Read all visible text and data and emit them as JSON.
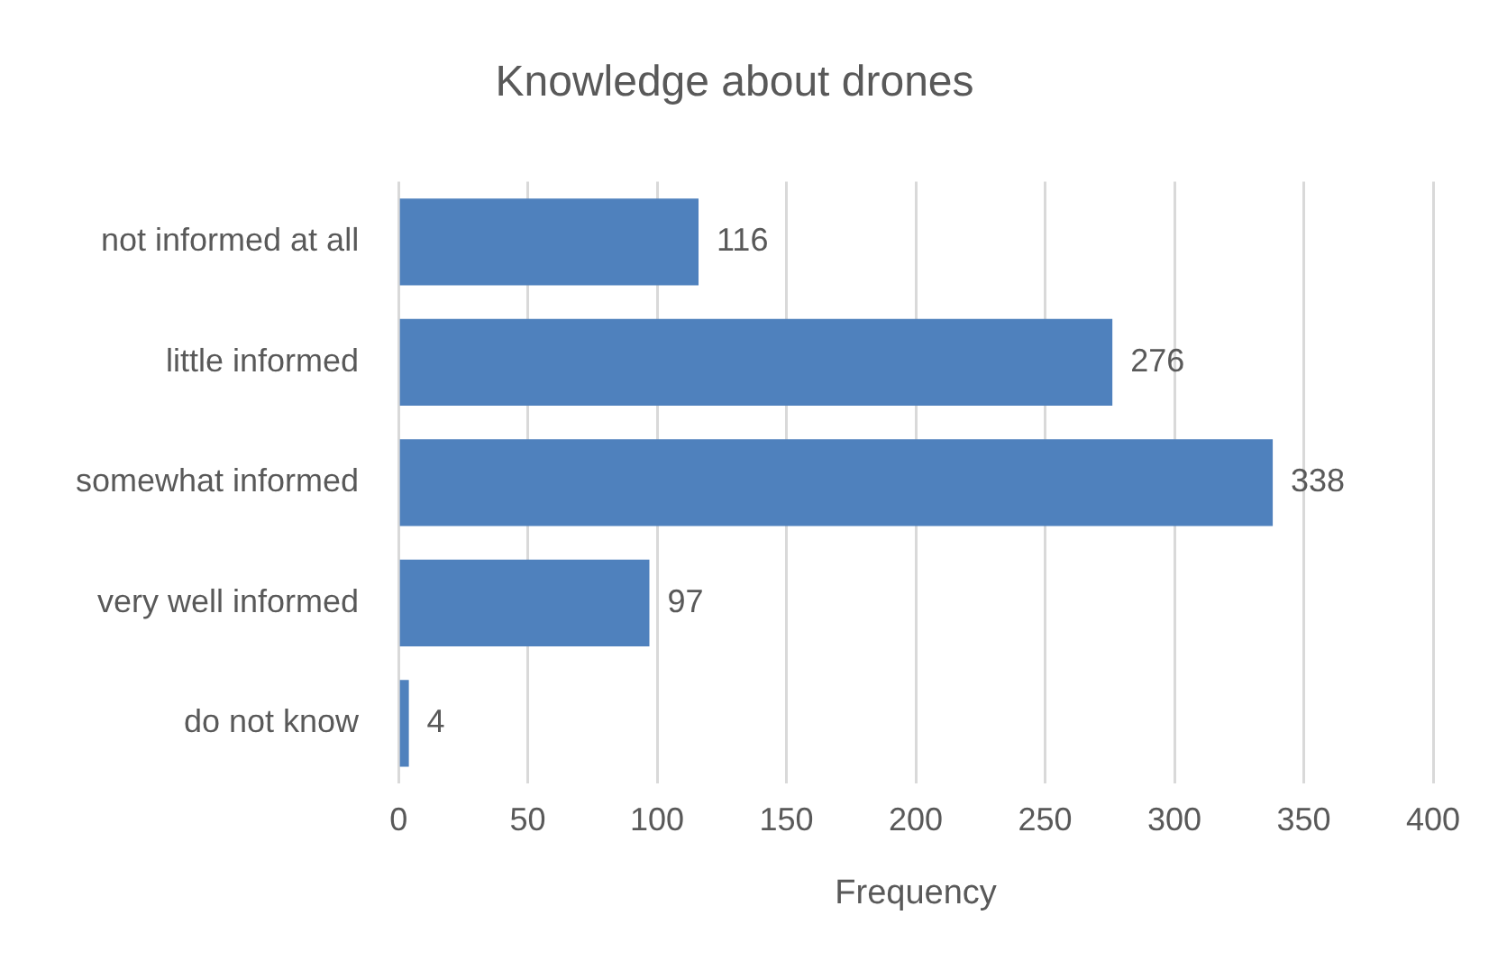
{
  "chart_data": {
    "type": "bar",
    "orientation": "horizontal",
    "title": "Knowledge about drones",
    "xlabel": "Frequency",
    "categories": [
      "not informed at all",
      "little informed",
      "somewhat informed",
      "very well informed",
      "do not know"
    ],
    "values": [
      116,
      276,
      338,
      97,
      4
    ],
    "color": "#4f81bd",
    "xlim": [
      0,
      400
    ],
    "xticks": [
      0,
      50,
      100,
      150,
      200,
      250,
      300,
      350,
      400
    ],
    "grid": "x",
    "data_labels": true,
    "legend": false
  }
}
